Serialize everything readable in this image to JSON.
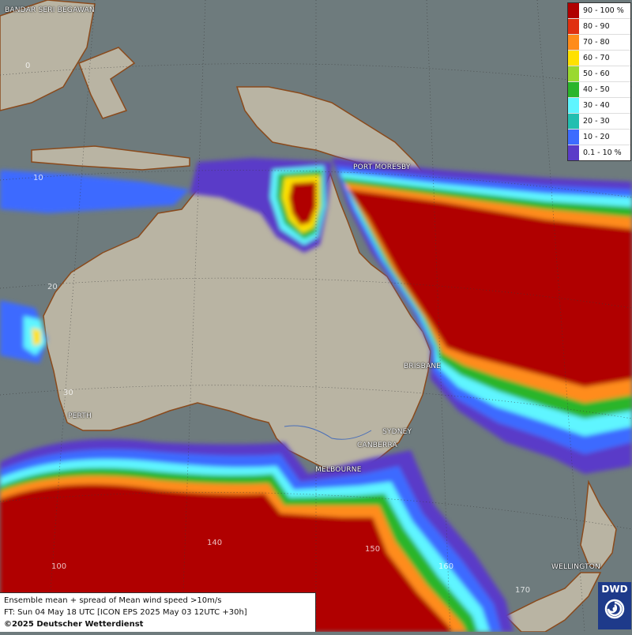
{
  "legend": [
    {
      "label": "90 - 100 %",
      "color": "#b00000"
    },
    {
      "label": "80 - 90",
      "color": "#e03010"
    },
    {
      "label": "70 - 80",
      "color": "#ff8c1a"
    },
    {
      "label": "60 - 70",
      "color": "#ffe100"
    },
    {
      "label": "50 - 60",
      "color": "#9ad92f"
    },
    {
      "label": "40 - 50",
      "color": "#2ab52a"
    },
    {
      "label": "30 - 40",
      "color": "#5ff5ff"
    },
    {
      "label": "20 - 30",
      "color": "#22bfb0"
    },
    {
      "label": "10 - 20",
      "color": "#3d6bff"
    },
    {
      "label": "0.1 - 10 %",
      "color": "#5a3bc8"
    }
  ],
  "cities": {
    "bandar_seri_begawan": "BANDAR SERI BEGAWAN",
    "port_moresby": "PORT MORESBY",
    "brisbane": "BRISBANE",
    "sydney": "SYDNEY",
    "canberra": "CANBERRA",
    "melbourne": "MELBOURNE",
    "perth": "PERTH",
    "wellington": "WELLINGTON"
  },
  "gridlabels": {
    "lat_0": "0",
    "lat_10": "10",
    "lat_20": "20",
    "lat_30": "30",
    "lon_100": "100",
    "lon_140": "140",
    "lon_150": "150",
    "lon_160": "160",
    "lon_170": "170"
  },
  "info": {
    "line1": "Ensemble mean + spread of Mean wind speed >10m/s",
    "line2": "FT: Sun 04 May 18 UTC [ICON EPS 2025 May 03 12UTC +30h]",
    "copyright": "©2025 Deutscher Wetterdienst"
  },
  "logo": {
    "text": "DWD",
    "color": "#1e3a8a"
  },
  "colors": {
    "ocean": "#6e7b7d",
    "land": "#b9b4a3",
    "coast": "#8a4a1c"
  }
}
